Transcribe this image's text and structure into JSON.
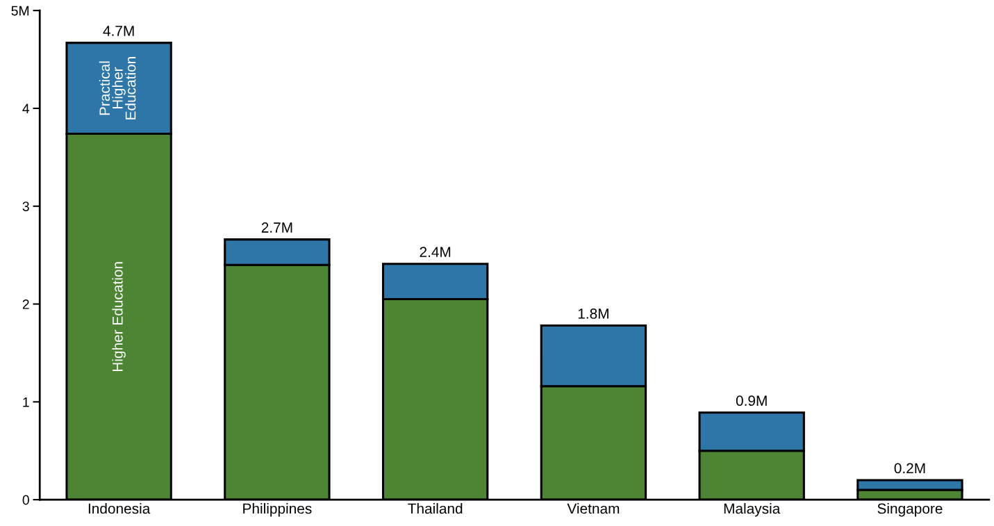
{
  "chart_data": {
    "type": "bar",
    "stacked": true,
    "categories": [
      "Indonesia",
      "Philippines",
      "Thailand",
      "Vietnam",
      "Malaysia",
      "Singapore"
    ],
    "series": [
      {
        "name": "Higher Education",
        "color": "#4d8535",
        "values": [
          3.74,
          2.4,
          2.05,
          1.16,
          0.5,
          0.1
        ]
      },
      {
        "name": "Practical Higher Education",
        "color": "#2e75a8",
        "values": [
          0.93,
          0.26,
          0.36,
          0.62,
          0.39,
          0.1
        ]
      }
    ],
    "totals": [
      "4.7M",
      "2.7M",
      "2.4M",
      "1.8M",
      "0.9M",
      "0.2M"
    ],
    "ylim": [
      0,
      5
    ],
    "yticks": [
      0,
      1,
      2,
      3,
      4,
      {
        "value": 5,
        "label": "5M"
      }
    ],
    "grid": false
  }
}
